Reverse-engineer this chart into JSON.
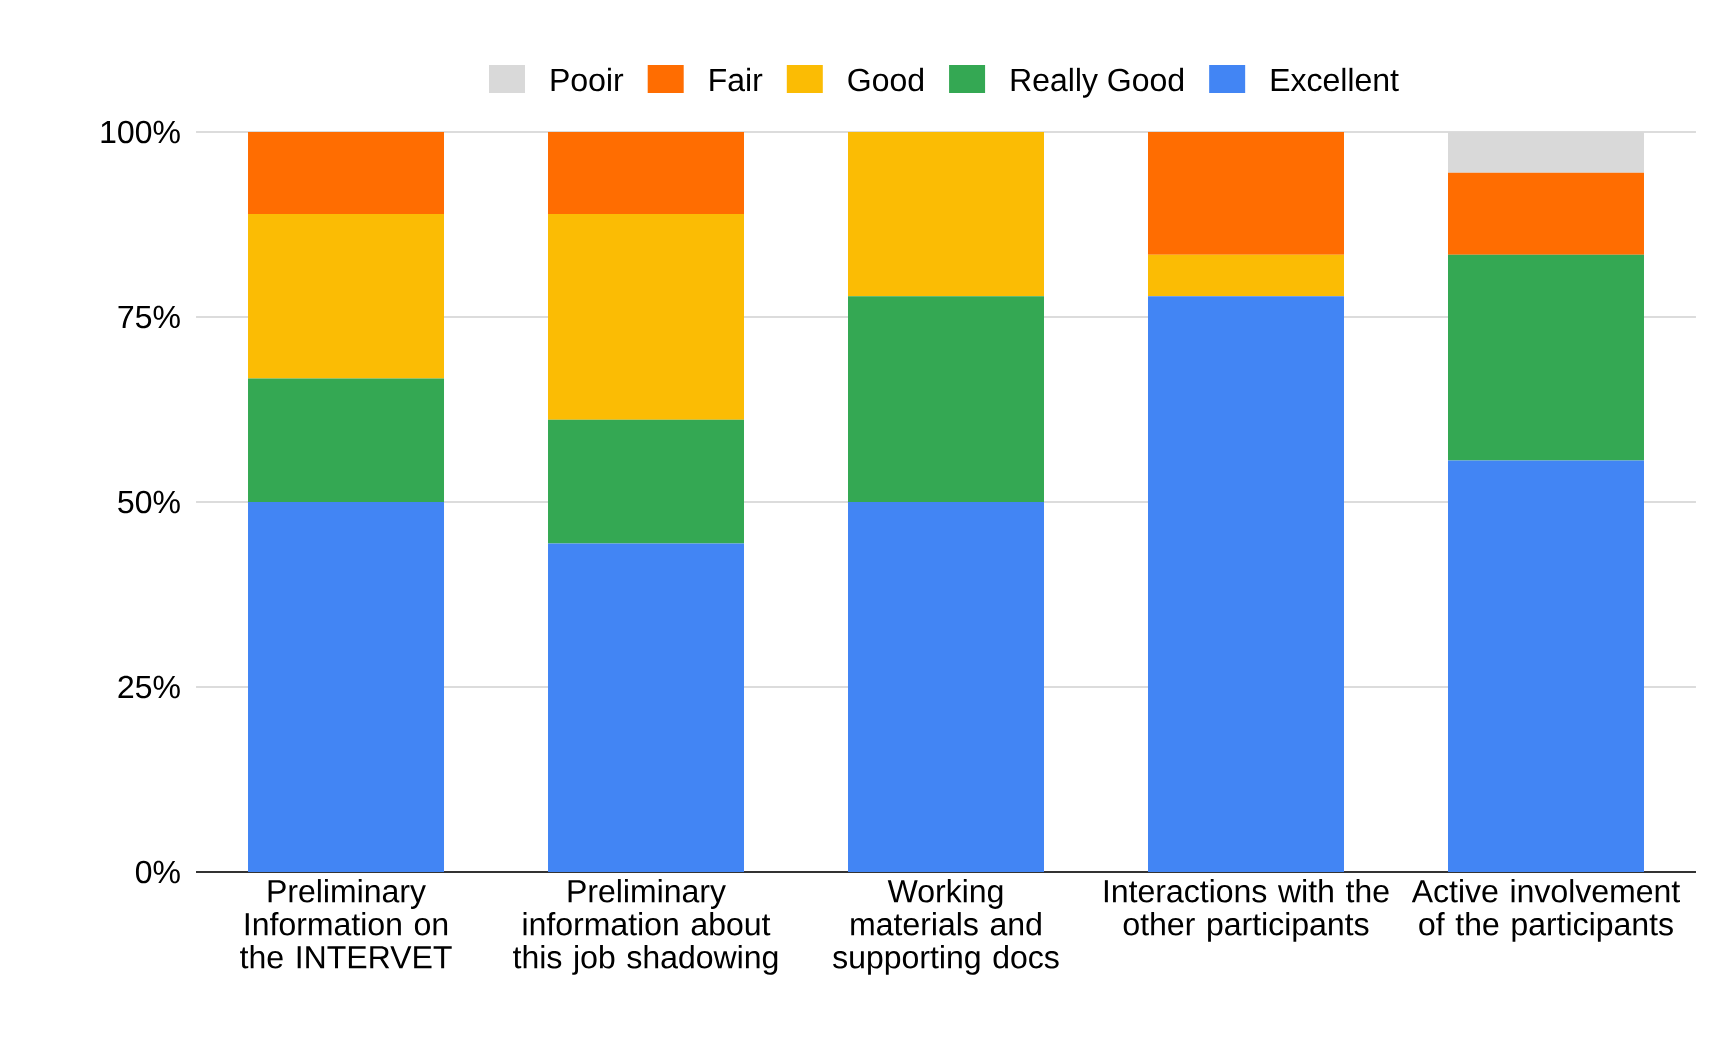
{
  "chart_data": {
    "type": "bar",
    "stacked": true,
    "categories": [
      "Preliminary Information on the INTERVET",
      "Preliminary information about this job shadowing",
      "Working materials and supporting docs",
      "Interactions with the other participants",
      "Active involvement of the participants"
    ],
    "series": [
      {
        "name": "Excellent",
        "color": "#4285f4",
        "values": [
          50,
          44.4,
          50,
          77.8,
          55.6
        ]
      },
      {
        "name": "Really Good",
        "color": "#34a853",
        "values": [
          16.7,
          16.7,
          27.8,
          0,
          27.8
        ]
      },
      {
        "name": "Good",
        "color": "#fbbc04",
        "values": [
          22.2,
          27.8,
          22.2,
          5.6,
          0
        ]
      },
      {
        "name": "Fair",
        "color": "#ff6d01",
        "values": [
          11.1,
          11.1,
          0,
          16.7,
          11.1
        ]
      },
      {
        "name": "Pooir",
        "color": "#d9d9d9",
        "values": [
          0,
          0,
          0,
          0,
          5.6
        ]
      }
    ],
    "ylim": [
      0,
      100
    ],
    "yticks": [
      {
        "value": 0,
        "label": "0%"
      },
      {
        "value": 25,
        "label": "25%"
      },
      {
        "value": 50,
        "label": "50%"
      },
      {
        "value": 75,
        "label": "75%"
      },
      {
        "value": 100,
        "label": "100%"
      }
    ],
    "grid": "y",
    "legend": "top"
  }
}
